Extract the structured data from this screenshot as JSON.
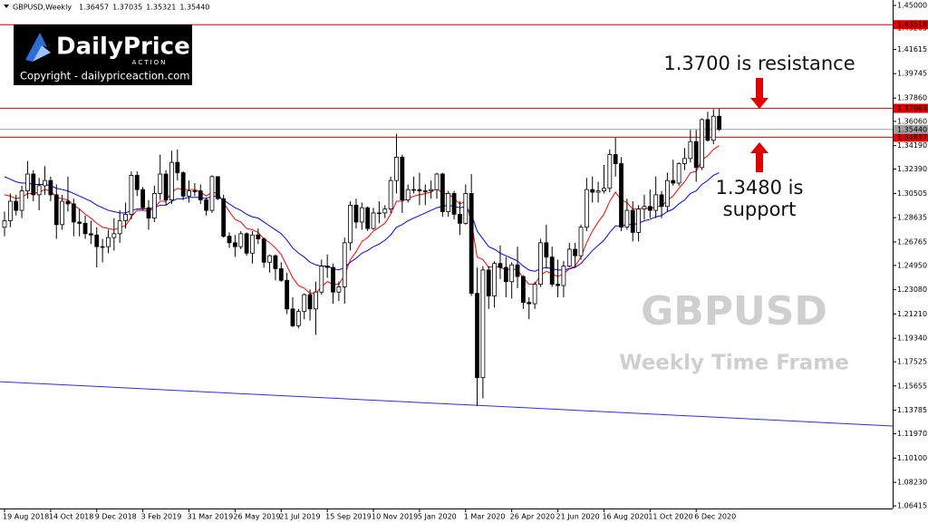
{
  "chart_data": {
    "type": "candlestick",
    "title": "GBPUSD,Weekly",
    "quote": [
      "1.36457",
      "1.37035",
      "1.35321",
      "1.35440"
    ],
    "logo": {
      "brand": "DailyPrice",
      "tagline": "ACTION",
      "copyright": "Copyright - dailypriceaction.com"
    },
    "annotations": {
      "resistance": "1.3700 is resistance",
      "support": [
        "1.3480 is",
        "support"
      ]
    },
    "watermark": {
      "title": "GBPUSD",
      "subtitle": "Weekly Time Frame"
    },
    "up_color": "#ffffff",
    "down_color": "#000000",
    "categories": [
      "19 Aug 2018",
      null,
      null,
      null,
      null,
      null,
      null,
      null,
      "14 Oct 2018",
      null,
      null,
      null,
      null,
      null,
      null,
      null,
      "9 Dec 2018",
      null,
      null,
      null,
      null,
      null,
      null,
      null,
      "3 Feb 2019",
      null,
      null,
      null,
      null,
      null,
      null,
      null,
      "31 Mar 2019",
      null,
      null,
      null,
      null,
      null,
      null,
      null,
      "26 May 2019",
      null,
      null,
      null,
      null,
      null,
      null,
      null,
      "21 Jul 2019",
      null,
      null,
      null,
      null,
      null,
      null,
      null,
      "15 Sep 2019",
      null,
      null,
      null,
      null,
      null,
      null,
      null,
      "10 Nov 2019",
      null,
      null,
      null,
      null,
      null,
      null,
      null,
      "5 Jan 2020",
      null,
      null,
      null,
      null,
      null,
      null,
      null,
      "1 Mar 2020",
      null,
      null,
      null,
      null,
      null,
      null,
      null,
      "26 Apr 2020",
      null,
      null,
      null,
      null,
      null,
      null,
      null,
      "21 Jun 2020",
      null,
      null,
      null,
      null,
      null,
      null,
      null,
      "16 Aug 2020",
      null,
      null,
      null,
      null,
      null,
      null,
      null,
      "11 Oct 2020",
      null,
      null,
      null,
      null,
      null,
      null,
      null,
      "6 Dec 2020",
      null,
      null,
      null,
      null
    ],
    "open": [
      1.279,
      1.284,
      1.299,
      1.292,
      1.307,
      1.32,
      1.304,
      1.311,
      1.315,
      1.304,
      1.281,
      1.299,
      1.297,
      1.283,
      1.282,
      1.274,
      1.273,
      1.264,
      1.264,
      1.271,
      1.274,
      1.284,
      1.289,
      1.319,
      1.308,
      1.294,
      1.286,
      1.305,
      1.32,
      1.3,
      1.329,
      1.321,
      1.303,
      1.307,
      1.307,
      1.3,
      1.292,
      1.318,
      1.301,
      1.272,
      1.267,
      1.264,
      1.274,
      1.259,
      1.273,
      1.27,
      1.252,
      1.257,
      1.247,
      1.238,
      1.216,
      1.203,
      1.214,
      1.227,
      1.216,
      1.229,
      1.249,
      1.248,
      1.229,
      1.233,
      1.267,
      1.296,
      1.283,
      1.294,
      1.278,
      1.29,
      1.29,
      1.293,
      1.315,
      1.333,
      1.3,
      1.308,
      1.308,
      1.307,
      1.307,
      1.308,
      1.32,
      1.291,
      1.305,
      1.289,
      1.282,
      1.305,
      1.228,
      1.163,
      1.246,
      1.226,
      1.251,
      1.248,
      1.237,
      1.25,
      1.241,
      1.221,
      1.22,
      1.235,
      1.267,
      1.256,
      1.235,
      1.234,
      1.249,
      1.262,
      1.257,
      1.279,
      1.308,
      1.306,
      1.307,
      1.309,
      1.335,
      1.328,
      1.279,
      1.292,
      1.275,
      1.293,
      1.295,
      1.292,
      1.304,
      1.295,
      1.315,
      1.313,
      1.328,
      1.332,
      1.345,
      1.325,
      1.362,
      1.346,
      1.36457
    ],
    "high": [
      1.291,
      1.305,
      1.304,
      1.311,
      1.33,
      1.323,
      1.317,
      1.326,
      1.318,
      1.312,
      1.304,
      1.318,
      1.301,
      1.293,
      1.288,
      1.284,
      1.279,
      1.27,
      1.277,
      1.286,
      1.292,
      1.298,
      1.322,
      1.322,
      1.31,
      1.3,
      1.311,
      1.335,
      1.323,
      1.338,
      1.339,
      1.322,
      1.315,
      1.313,
      1.312,
      1.302,
      1.319,
      1.318,
      1.304,
      1.275,
      1.273,
      1.276,
      1.275,
      1.276,
      1.278,
      1.271,
      1.258,
      1.258,
      1.252,
      1.244,
      1.225,
      1.216,
      1.228,
      1.231,
      1.237,
      1.254,
      1.258,
      1.251,
      1.237,
      1.271,
      1.299,
      1.301,
      1.298,
      1.295,
      1.294,
      1.299,
      1.296,
      1.318,
      1.351,
      1.335,
      1.312,
      1.318,
      1.321,
      1.312,
      1.315,
      1.321,
      1.321,
      1.307,
      1.307,
      1.299,
      1.312,
      1.32,
      1.248,
      1.249,
      1.249,
      1.253,
      1.265,
      1.256,
      1.252,
      1.264,
      1.242,
      1.225,
      1.237,
      1.27,
      1.281,
      1.264,
      1.254,
      1.253,
      1.267,
      1.267,
      1.281,
      1.317,
      1.318,
      1.314,
      1.327,
      1.339,
      1.348,
      1.333,
      1.301,
      1.299,
      1.296,
      1.304,
      1.308,
      1.318,
      1.307,
      1.321,
      1.331,
      1.329,
      1.34,
      1.354,
      1.354,
      1.363,
      1.368,
      1.37,
      1.37035
    ],
    "low": [
      1.272,
      1.279,
      1.288,
      1.286,
      1.301,
      1.299,
      1.292,
      1.304,
      1.299,
      1.27,
      1.277,
      1.291,
      1.272,
      1.272,
      1.27,
      1.266,
      1.248,
      1.252,
      1.259,
      1.261,
      1.267,
      1.278,
      1.285,
      1.303,
      1.292,
      1.277,
      1.283,
      1.3,
      1.296,
      1.297,
      1.315,
      1.3,
      1.298,
      1.303,
      1.297,
      1.288,
      1.29,
      1.3,
      1.271,
      1.263,
      1.256,
      1.262,
      1.257,
      1.251,
      1.266,
      1.248,
      1.244,
      1.238,
      1.237,
      1.212,
      1.202,
      1.201,
      1.208,
      1.207,
      1.196,
      1.227,
      1.24,
      1.22,
      1.222,
      1.22,
      1.261,
      1.278,
      1.277,
      1.276,
      1.277,
      1.282,
      1.286,
      1.29,
      1.305,
      1.29,
      1.298,
      1.305,
      1.296,
      1.296,
      1.301,
      1.301,
      1.287,
      1.287,
      1.285,
      1.273,
      1.281,
      1.226,
      1.141,
      1.147,
      1.216,
      1.217,
      1.239,
      1.225,
      1.224,
      1.232,
      1.216,
      1.208,
      1.216,
      1.233,
      1.247,
      1.233,
      1.225,
      1.225,
      1.248,
      1.248,
      1.254,
      1.276,
      1.298,
      1.298,
      1.305,
      1.306,
      1.318,
      1.276,
      1.277,
      1.268,
      1.268,
      1.285,
      1.286,
      1.286,
      1.286,
      1.291,
      1.311,
      1.311,
      1.323,
      1.329,
      1.314,
      1.323,
      1.345,
      1.343,
      1.35321
    ],
    "close": [
      1.284,
      1.299,
      1.292,
      1.307,
      1.32,
      1.304,
      1.311,
      1.315,
      1.304,
      1.281,
      1.299,
      1.297,
      1.283,
      1.282,
      1.274,
      1.273,
      1.264,
      1.264,
      1.271,
      1.274,
      1.284,
      1.289,
      1.319,
      1.308,
      1.294,
      1.286,
      1.305,
      1.32,
      1.3,
      1.329,
      1.321,
      1.303,
      1.307,
      1.307,
      1.3,
      1.292,
      1.318,
      1.301,
      1.272,
      1.267,
      1.264,
      1.274,
      1.259,
      1.273,
      1.27,
      1.252,
      1.257,
      1.247,
      1.238,
      1.216,
      1.203,
      1.214,
      1.227,
      1.216,
      1.229,
      1.249,
      1.248,
      1.229,
      1.233,
      1.267,
      1.296,
      1.283,
      1.294,
      1.278,
      1.29,
      1.29,
      1.293,
      1.315,
      1.333,
      1.3,
      1.308,
      1.308,
      1.307,
      1.307,
      1.308,
      1.32,
      1.291,
      1.305,
      1.289,
      1.282,
      1.305,
      1.228,
      1.163,
      1.246,
      1.226,
      1.251,
      1.248,
      1.237,
      1.25,
      1.241,
      1.221,
      1.22,
      1.235,
      1.267,
      1.256,
      1.235,
      1.234,
      1.249,
      1.262,
      1.257,
      1.279,
      1.308,
      1.306,
      1.307,
      1.309,
      1.335,
      1.328,
      1.279,
      1.292,
      1.275,
      1.293,
      1.295,
      1.292,
      1.304,
      1.295,
      1.315,
      1.313,
      1.328,
      1.332,
      1.345,
      1.325,
      1.362,
      1.346,
      1.3646,
      1.3544
    ],
    "series": [
      {
        "color": "#ff0000",
        "values": [
          1.304,
          1.303,
          1.301,
          1.302,
          1.305,
          1.305,
          1.306,
          1.308,
          1.307,
          1.302,
          1.301,
          1.3,
          1.296,
          1.293,
          1.289,
          1.286,
          1.282,
          1.279,
          1.278,
          1.277,
          1.279,
          1.28,
          1.287,
          1.292,
          1.292,
          1.291,
          1.294,
          1.299,
          1.299,
          1.306,
          1.309,
          1.308,
          1.308,
          1.308,
          1.306,
          1.303,
          1.306,
          1.305,
          1.298,
          1.291,
          1.285,
          1.283,
          1.278,
          1.277,
          1.275,
          1.27,
          1.267,
          1.263,
          1.258,
          1.249,
          1.24,
          1.234,
          1.232,
          1.228,
          1.228,
          1.233,
          1.237,
          1.235,
          1.235,
          1.242,
          1.254,
          1.26,
          1.268,
          1.271,
          1.276,
          1.279,
          1.282,
          1.289,
          1.299,
          1.299,
          1.301,
          1.303,
          1.304,
          1.305,
          1.306,
          1.309,
          1.305,
          1.305,
          1.301,
          1.297,
          1.299,
          1.283,
          1.256,
          1.254,
          1.248,
          1.249,
          1.248,
          1.246,
          1.247,
          1.246,
          1.24,
          1.235,
          1.235,
          1.242,
          1.245,
          1.243,
          1.241,
          1.243,
          1.247,
          1.249,
          1.256,
          1.267,
          1.276,
          1.283,
          1.289,
          1.299,
          1.306,
          1.3,
          1.298,
          1.293,
          1.293,
          1.294,
          1.293,
          1.295,
          1.295,
          1.3,
          1.303,
          1.309,
          1.314,
          1.321,
          1.322,
          1.331,
          1.334,
          1.339,
          1.342
        ]
      },
      {
        "color": "#0000ff",
        "values": [
          1.318,
          1.316,
          1.314,
          1.313,
          1.313,
          1.312,
          1.312,
          1.312,
          1.311,
          1.309,
          1.308,
          1.307,
          1.305,
          1.303,
          1.301,
          1.299,
          1.296,
          1.294,
          1.292,
          1.291,
          1.29,
          1.29,
          1.292,
          1.293,
          1.293,
          1.293,
          1.294,
          1.296,
          1.296,
          1.299,
          1.301,
          1.301,
          1.302,
          1.302,
          1.302,
          1.301,
          1.303,
          1.303,
          1.3,
          1.297,
          1.294,
          1.292,
          1.289,
          1.287,
          1.286,
          1.283,
          1.28,
          1.277,
          1.274,
          1.269,
          1.263,
          1.259,
          1.256,
          1.252,
          1.25,
          1.249,
          1.249,
          1.247,
          1.246,
          1.248,
          1.252,
          1.255,
          1.259,
          1.261,
          1.264,
          1.266,
          1.269,
          1.273,
          1.279,
          1.281,
          1.284,
          1.286,
          1.288,
          1.29,
          1.292,
          1.294,
          1.295,
          1.296,
          1.295,
          1.294,
          1.295,
          1.289,
          1.276,
          1.27,
          1.264,
          1.262,
          1.259,
          1.257,
          1.255,
          1.253,
          1.249,
          1.246,
          1.245,
          1.247,
          1.248,
          1.247,
          1.246,
          1.246,
          1.247,
          1.248,
          1.251,
          1.256,
          1.261,
          1.265,
          1.269,
          1.275,
          1.28,
          1.28,
          1.281,
          1.281,
          1.282,
          1.284,
          1.285,
          1.287,
          1.288,
          1.291,
          1.293,
          1.297,
          1.3,
          1.305,
          1.307,
          1.312,
          1.315,
          1.319,
          1.321
        ]
      }
    ],
    "levels": [
      {
        "price": 1.43518,
        "color": "#e00000"
      },
      {
        "price": 1.37063,
        "color": "#e00000"
      },
      {
        "price": 1.34837,
        "color": "#e00000"
      },
      {
        "price": 1.3544,
        "label": "1.35440",
        "color": "#a0a0a0"
      }
    ],
    "trendline": {
      "values": [
        1.1599,
        1.1257
      ],
      "color": "#2b2bff"
    },
    "ylim": [
      1.0621,
      1.4542
    ],
    "yticks": [
      {
        "value": 1.45,
        "label": "1.45000"
      },
      1.43265,
      1.41615,
      1.39745,
      {
        "value": 1.3786,
        "label": "1.37860"
      },
      {
        "value": 1.3606,
        "label": "1.36060"
      },
      {
        "value": 1.3419,
        "label": "1.34190"
      },
      {
        "value": 1.3239,
        "label": "1.32390"
      },
      1.30505,
      1.28635,
      1.26765,
      {
        "value": 1.2495,
        "label": "1.24950"
      },
      {
        "value": 1.2308,
        "label": "1.23080"
      },
      {
        "value": 1.2121,
        "label": "1.21210"
      },
      {
        "value": 1.1934,
        "label": "1.19340"
      },
      1.17525,
      1.15655,
      1.13785,
      {
        "value": 1.1197,
        "label": "1.11970"
      },
      {
        "value": 1.101,
        "label": "1.10100"
      },
      {
        "value": 1.0823,
        "label": "1.08230"
      },
      1.06415
    ]
  }
}
